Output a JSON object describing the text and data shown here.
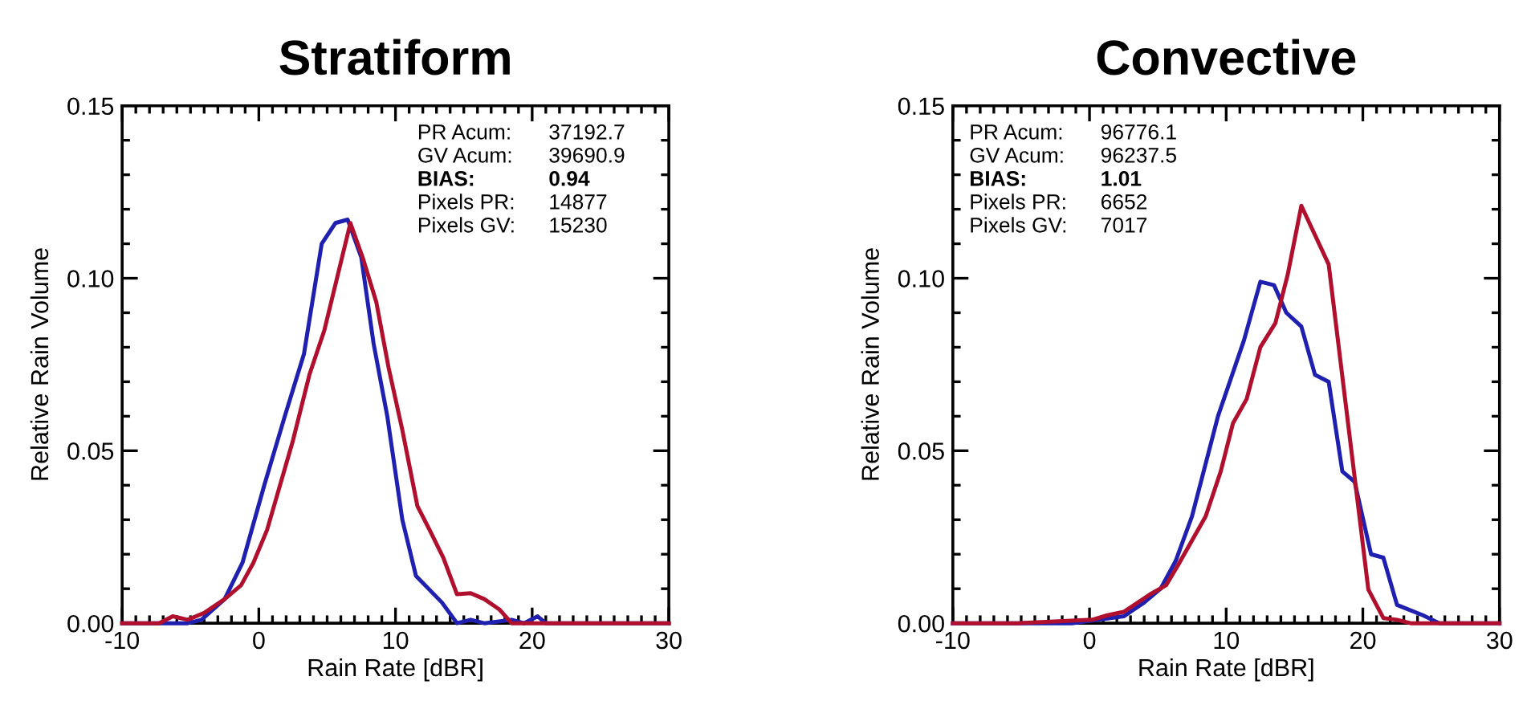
{
  "chart_data": [
    {
      "type": "line",
      "title": "Stratiform",
      "xlabel": "Rain Rate [dBR]",
      "ylabel": "Relative Rain Volume",
      "xlim": [
        -10,
        30
      ],
      "xticks": [
        -10,
        0,
        10,
        20,
        30
      ],
      "ylim": [
        0,
        0.15
      ],
      "yticks": [
        {
          "value": 0,
          "label": "0.00"
        },
        {
          "value": 0.05,
          "label": "0.05"
        },
        {
          "value": 0.1,
          "label": "0.10"
        },
        {
          "value": 0.15,
          "label": "0.15"
        }
      ],
      "grid": false,
      "legend": false,
      "annotations": [
        "PR Acum:\t37192.7",
        "GV Acum:\t39690.9",
        "BIAS:\t0.94",
        "Pixels PR:\t14877",
        "Pixels GV:\t15230"
      ],
      "series": [
        {
          "color": "#2020b0",
          "x": [
            -10,
            -5.2,
            -4.2,
            -2.5,
            -1.2,
            0.4,
            1.9,
            3.3,
            4.6,
            5.6,
            6.5,
            7.5,
            8.4,
            9.4,
            10.5,
            11.5,
            13.4,
            14.5,
            15.5,
            16.5,
            18.5,
            19.4,
            20.4,
            21,
            30
          ],
          "values": [
            0,
            0,
            0.001,
            0.007,
            0.0175,
            0.04,
            0.06,
            0.078,
            0.11,
            0.116,
            0.117,
            0.106,
            0.081,
            0.06,
            0.03,
            0.0137,
            0.006,
            0,
            0.001,
            0,
            0.001,
            0,
            0.002,
            0,
            0
          ]
        },
        {
          "color": "#b0102e",
          "x": [
            -10,
            -7.3,
            -6.3,
            -5.2,
            -4,
            -2.5,
            -1.3,
            -0.4,
            0.6,
            2.5,
            3.7,
            4.8,
            6.7,
            7.6,
            8.6,
            9.5,
            10.5,
            11.6,
            12.5,
            13.5,
            14.5,
            15.5,
            16.5,
            17.6,
            18.5,
            30
          ],
          "values": [
            0,
            0,
            0.002,
            0.001,
            0.003,
            0.007,
            0.011,
            0.0175,
            0.027,
            0.053,
            0.072,
            0.085,
            0.116,
            0.106,
            0.093,
            0.074,
            0.056,
            0.034,
            0.027,
            0.019,
            0.0084,
            0.0087,
            0.007,
            0.004,
            0,
            0
          ]
        }
      ]
    },
    {
      "type": "line",
      "title": "Convective",
      "xlabel": "Rain Rate [dBR]",
      "ylabel": "Relative Rain Volume",
      "xlim": [
        -10,
        30
      ],
      "xticks": [
        -10,
        0,
        10,
        20,
        30
      ],
      "ylim": [
        0,
        0.15
      ],
      "yticks": [
        {
          "value": 0,
          "label": "0.00"
        },
        {
          "value": 0.05,
          "label": "0.05"
        },
        {
          "value": 0.1,
          "label": "0.10"
        },
        {
          "value": 0.15,
          "label": "0.15"
        }
      ],
      "grid": false,
      "legend": false,
      "annotations": [
        "PR Acum:\t96776.1",
        "GV Acum:\t96237.5",
        "BIAS:\t1.01",
        "Pixels PR:\t6652",
        "Pixels GV:\t7017"
      ],
      "series": [
        {
          "color": "#2020b0",
          "x": [
            -10,
            -1.3,
            2.5,
            4,
            5.2,
            6.3,
            7.5,
            9.4,
            11.3,
            12.5,
            13.5,
            14.4,
            15.5,
            16.5,
            17.5,
            18.5,
            19.4,
            20.6,
            21.5,
            22.5,
            24.4,
            25.6,
            30
          ],
          "values": [
            0,
            0,
            0.002,
            0.006,
            0.01,
            0.018,
            0.031,
            0.06,
            0.082,
            0.099,
            0.098,
            0.09,
            0.086,
            0.072,
            0.07,
            0.044,
            0.041,
            0.02,
            0.019,
            0.0053,
            0.0023,
            0,
            0
          ]
        },
        {
          "color": "#b0102e",
          "x": [
            -10,
            -5.2,
            0.2,
            1.3,
            2.5,
            4.4,
            5.6,
            6.5,
            8.5,
            9.6,
            10.5,
            11.5,
            12.5,
            13.6,
            14.5,
            15.5,
            17.5,
            20.4,
            21.5,
            22.5,
            23.5,
            30
          ],
          "values": [
            0,
            0,
            0.001,
            0.0023,
            0.0033,
            0.0083,
            0.011,
            0.017,
            0.031,
            0.044,
            0.058,
            0.065,
            0.08,
            0.087,
            0.101,
            0.121,
            0.104,
            0.0098,
            0.0015,
            0.001,
            0,
            0
          ]
        }
      ]
    }
  ]
}
